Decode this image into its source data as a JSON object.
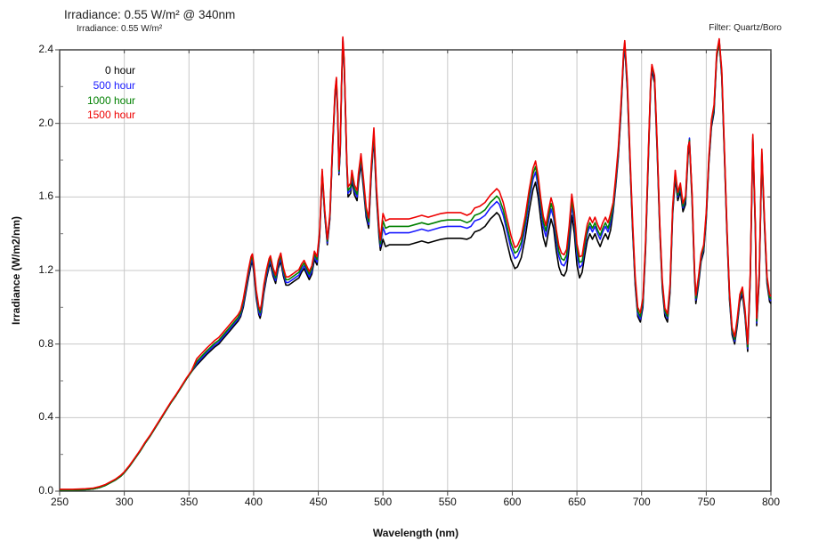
{
  "header": {
    "title": "Irradiance: 0.55 W/m² @ 340nm",
    "subtitle": "Irradiance: 0.55 W/m²",
    "filter_label": "Filter: Quartz/Boro"
  },
  "legend": {
    "position": "top-left",
    "items": [
      {
        "label": "0 hour",
        "color": "#000000"
      },
      {
        "label": "500 hour",
        "color": "#1a1aff"
      },
      {
        "label": "1000 hour",
        "color": "#008000"
      },
      {
        "label": "1500 hour",
        "color": "#ee0000"
      }
    ]
  },
  "axes": {
    "x_label": "Wavelength (nm)",
    "y_label": "Irradiance (W/m2/nm)",
    "x_tick_labels": [
      "250",
      "300",
      "350",
      "400",
      "450",
      "500",
      "550",
      "600",
      "650",
      "700",
      "750",
      "800"
    ],
    "y_tick_labels": [
      "0.0",
      "0.4",
      "0.8",
      "1.2",
      "1.6",
      "2.0",
      "2.4"
    ]
  },
  "colors": {
    "grid": "#c8c8c8",
    "border": "#333333",
    "tick": "#444444",
    "background": "#ffffff"
  },
  "chart_data": {
    "type": "line",
    "title": "Irradiance: 0.55 W/m² @ 340nm",
    "xlabel": "Wavelength (nm)",
    "ylabel": "Irradiance (W/m2/nm)",
    "xlim": [
      250,
      800
    ],
    "ylim": [
      0,
      2.4
    ],
    "grid": true,
    "legend_position": "top-left",
    "x_ticks": [
      250,
      300,
      350,
      400,
      450,
      500,
      550,
      600,
      650,
      700,
      750,
      800
    ],
    "y_ticks": [
      0,
      0.4,
      0.8,
      1.2,
      1.6,
      2.0,
      2.4
    ],
    "x": [
      250,
      260,
      270,
      276,
      281,
      285,
      289,
      293,
      297,
      300,
      304,
      308,
      312,
      316,
      320,
      324,
      328,
      332,
      336,
      340,
      344,
      348,
      352,
      356,
      360,
      364,
      367,
      370,
      373,
      376,
      379,
      382,
      385,
      388,
      390,
      392,
      394,
      396,
      398,
      399,
      400,
      402,
      404,
      405,
      406,
      408,
      410,
      412,
      413,
      415,
      417,
      419,
      421,
      423,
      425,
      427,
      429,
      431,
      433,
      435,
      437,
      439,
      441,
      443,
      445,
      447,
      449,
      451,
      453,
      455,
      457,
      459,
      461,
      463,
      464,
      465,
      466,
      467,
      468,
      469,
      470,
      471,
      472,
      473,
      475,
      476,
      478,
      480,
      481,
      483,
      485,
      487,
      489,
      491,
      493,
      495,
      497,
      498,
      500,
      502,
      505,
      510,
      515,
      520,
      525,
      530,
      535,
      540,
      545,
      550,
      555,
      560,
      565,
      568,
      571,
      575,
      579,
      583,
      586,
      588,
      590,
      593,
      596,
      599,
      602,
      604,
      607,
      610,
      613,
      616,
      618,
      620,
      622,
      624,
      626,
      628,
      630,
      632,
      634,
      636,
      638,
      640,
      642,
      644,
      646,
      648,
      650,
      652,
      654,
      656,
      658,
      660,
      662,
      664,
      666,
      668,
      670,
      672,
      674,
      676,
      678,
      680,
      682,
      684,
      686,
      687,
      689,
      691,
      693,
      695,
      697,
      699,
      701,
      703,
      705,
      707,
      708,
      710,
      712,
      714,
      716,
      718,
      720,
      722,
      724,
      726,
      728,
      730,
      732,
      734,
      736,
      737,
      739,
      741,
      742,
      744,
      746,
      748,
      750,
      752,
      754,
      756,
      758,
      760,
      762,
      764,
      766,
      768,
      770,
      772,
      774,
      776,
      778,
      780,
      782,
      784,
      786,
      788,
      789,
      791,
      793,
      795,
      797,
      799,
      800
    ],
    "series": [
      {
        "name": "0 hour",
        "color": "#000000",
        "values": [
          0.005,
          0.005,
          0.008,
          0.012,
          0.02,
          0.03,
          0.045,
          0.06,
          0.08,
          0.1,
          0.135,
          0.175,
          0.215,
          0.26,
          0.3,
          0.345,
          0.39,
          0.435,
          0.48,
          0.52,
          0.565,
          0.61,
          0.65,
          0.685,
          0.715,
          0.745,
          0.765,
          0.785,
          0.8,
          0.825,
          0.85,
          0.875,
          0.9,
          0.925,
          0.95,
          1.0,
          1.08,
          1.16,
          1.23,
          1.245,
          1.2,
          1.05,
          0.96,
          0.94,
          0.97,
          1.08,
          1.16,
          1.22,
          1.235,
          1.17,
          1.13,
          1.21,
          1.25,
          1.17,
          1.12,
          1.12,
          1.13,
          1.14,
          1.15,
          1.16,
          1.19,
          1.21,
          1.18,
          1.15,
          1.18,
          1.26,
          1.23,
          1.38,
          1.72,
          1.5,
          1.34,
          1.48,
          1.85,
          2.15,
          2.22,
          2.05,
          1.72,
          1.85,
          2.2,
          2.43,
          2.32,
          2.05,
          1.78,
          1.6,
          1.62,
          1.69,
          1.61,
          1.58,
          1.67,
          1.78,
          1.64,
          1.49,
          1.43,
          1.72,
          1.92,
          1.6,
          1.38,
          1.31,
          1.37,
          1.33,
          1.34,
          1.34,
          1.34,
          1.34,
          1.35,
          1.36,
          1.35,
          1.36,
          1.37,
          1.375,
          1.375,
          1.375,
          1.37,
          1.38,
          1.41,
          1.42,
          1.44,
          1.48,
          1.5,
          1.515,
          1.5,
          1.44,
          1.35,
          1.26,
          1.21,
          1.22,
          1.27,
          1.38,
          1.52,
          1.64,
          1.68,
          1.6,
          1.48,
          1.38,
          1.33,
          1.41,
          1.48,
          1.43,
          1.31,
          1.22,
          1.18,
          1.17,
          1.2,
          1.33,
          1.5,
          1.4,
          1.23,
          1.16,
          1.19,
          1.28,
          1.36,
          1.4,
          1.37,
          1.4,
          1.36,
          1.33,
          1.37,
          1.4,
          1.37,
          1.42,
          1.52,
          1.66,
          1.82,
          2.05,
          2.35,
          2.42,
          2.18,
          1.78,
          1.42,
          1.12,
          0.95,
          0.92,
          1.0,
          1.3,
          1.75,
          2.2,
          2.29,
          2.22,
          1.85,
          1.42,
          1.1,
          0.95,
          0.92,
          1.08,
          1.5,
          1.7,
          1.58,
          1.63,
          1.52,
          1.56,
          1.83,
          1.89,
          1.58,
          1.15,
          1.02,
          1.12,
          1.25,
          1.3,
          1.48,
          1.78,
          1.98,
          2.06,
          2.35,
          2.45,
          2.25,
          1.83,
          1.4,
          1.04,
          0.85,
          0.8,
          0.9,
          1.03,
          1.07,
          0.95,
          0.76,
          1.15,
          1.9,
          1.4,
          0.9,
          1.15,
          1.82,
          1.45,
          1.13,
          1.03,
          1.02
        ]
      },
      {
        "name": "500 hour",
        "color": "#1a1aff",
        "values": [
          0.005,
          0.005,
          0.008,
          0.012,
          0.02,
          0.03,
          0.045,
          0.06,
          0.08,
          0.1,
          0.135,
          0.175,
          0.215,
          0.26,
          0.3,
          0.345,
          0.39,
          0.435,
          0.48,
          0.52,
          0.565,
          0.61,
          0.65,
          0.695,
          0.725,
          0.755,
          0.775,
          0.795,
          0.81,
          0.835,
          0.86,
          0.885,
          0.91,
          0.935,
          0.96,
          1.015,
          1.095,
          1.175,
          1.245,
          1.26,
          1.215,
          1.065,
          0.975,
          0.955,
          0.985,
          1.095,
          1.175,
          1.235,
          1.25,
          1.185,
          1.145,
          1.225,
          1.265,
          1.185,
          1.135,
          1.135,
          1.145,
          1.155,
          1.165,
          1.175,
          1.205,
          1.225,
          1.195,
          1.165,
          1.195,
          1.275,
          1.245,
          1.39,
          1.73,
          1.51,
          1.35,
          1.49,
          1.86,
          2.16,
          2.23,
          2.06,
          1.73,
          1.86,
          2.21,
          2.46,
          2.33,
          2.06,
          1.79,
          1.62,
          1.64,
          1.71,
          1.63,
          1.6,
          1.69,
          1.8,
          1.66,
          1.51,
          1.45,
          1.74,
          1.94,
          1.62,
          1.4,
          1.33,
          1.435,
          1.395,
          1.405,
          1.405,
          1.405,
          1.405,
          1.415,
          1.425,
          1.415,
          1.425,
          1.435,
          1.44,
          1.44,
          1.44,
          1.43,
          1.44,
          1.47,
          1.48,
          1.5,
          1.54,
          1.56,
          1.575,
          1.56,
          1.5,
          1.41,
          1.32,
          1.265,
          1.275,
          1.325,
          1.435,
          1.575,
          1.695,
          1.735,
          1.655,
          1.535,
          1.435,
          1.385,
          1.465,
          1.535,
          1.485,
          1.365,
          1.275,
          1.235,
          1.225,
          1.255,
          1.385,
          1.555,
          1.455,
          1.285,
          1.215,
          1.23,
          1.32,
          1.4,
          1.44,
          1.41,
          1.44,
          1.4,
          1.37,
          1.41,
          1.44,
          1.41,
          1.46,
          1.535,
          1.675,
          1.835,
          2.065,
          2.36,
          2.43,
          2.195,
          1.795,
          1.435,
          1.135,
          0.965,
          0.935,
          1.015,
          1.32,
          1.77,
          2.21,
          2.3,
          2.24,
          1.87,
          1.44,
          1.12,
          0.97,
          0.94,
          1.1,
          1.52,
          1.72,
          1.6,
          1.65,
          1.54,
          1.58,
          1.85,
          1.92,
          1.6,
          1.17,
          1.04,
          1.14,
          1.265,
          1.315,
          1.495,
          1.795,
          1.995,
          2.075,
          2.36,
          2.455,
          2.265,
          1.845,
          1.415,
          1.055,
          0.865,
          0.815,
          0.915,
          1.045,
          1.085,
          0.965,
          0.775,
          1.165,
          1.915,
          1.415,
          0.915,
          1.165,
          1.835,
          1.465,
          1.145,
          1.045,
          1.035
        ]
      },
      {
        "name": "1000 hour",
        "color": "#008000",
        "values": [
          0.005,
          0.005,
          0.008,
          0.012,
          0.02,
          0.03,
          0.045,
          0.06,
          0.08,
          0.1,
          0.135,
          0.175,
          0.215,
          0.26,
          0.3,
          0.345,
          0.39,
          0.435,
          0.48,
          0.52,
          0.565,
          0.61,
          0.65,
          0.705,
          0.735,
          0.765,
          0.785,
          0.805,
          0.82,
          0.845,
          0.87,
          0.895,
          0.92,
          0.945,
          0.97,
          1.03,
          1.11,
          1.19,
          1.26,
          1.275,
          1.23,
          1.08,
          0.99,
          0.97,
          1.0,
          1.11,
          1.19,
          1.25,
          1.265,
          1.2,
          1.16,
          1.24,
          1.28,
          1.2,
          1.15,
          1.15,
          1.16,
          1.17,
          1.18,
          1.19,
          1.22,
          1.24,
          1.21,
          1.18,
          1.21,
          1.29,
          1.26,
          1.4,
          1.74,
          1.52,
          1.36,
          1.5,
          1.87,
          2.17,
          2.24,
          2.07,
          1.74,
          1.87,
          2.22,
          2.445,
          2.34,
          2.07,
          1.8,
          1.635,
          1.655,
          1.725,
          1.645,
          1.615,
          1.705,
          1.815,
          1.675,
          1.525,
          1.465,
          1.755,
          1.955,
          1.635,
          1.415,
          1.345,
          1.47,
          1.43,
          1.44,
          1.44,
          1.44,
          1.44,
          1.45,
          1.46,
          1.45,
          1.46,
          1.47,
          1.475,
          1.475,
          1.475,
          1.46,
          1.47,
          1.5,
          1.51,
          1.53,
          1.57,
          1.59,
          1.605,
          1.59,
          1.53,
          1.44,
          1.35,
          1.295,
          1.305,
          1.355,
          1.465,
          1.605,
          1.725,
          1.765,
          1.685,
          1.565,
          1.465,
          1.415,
          1.495,
          1.565,
          1.515,
          1.395,
          1.305,
          1.265,
          1.255,
          1.285,
          1.415,
          1.585,
          1.485,
          1.315,
          1.245,
          1.25,
          1.34,
          1.42,
          1.46,
          1.43,
          1.46,
          1.42,
          1.39,
          1.43,
          1.46,
          1.43,
          1.48,
          1.55,
          1.69,
          1.85,
          2.08,
          2.37,
          2.44,
          2.21,
          1.81,
          1.45,
          1.15,
          0.98,
          0.95,
          1.03,
          1.33,
          1.78,
          2.22,
          2.31,
          2.25,
          1.88,
          1.45,
          1.13,
          0.98,
          0.95,
          1.11,
          1.53,
          1.73,
          1.61,
          1.66,
          1.55,
          1.59,
          1.86,
          1.91,
          1.61,
          1.18,
          1.05,
          1.15,
          1.275,
          1.325,
          1.505,
          1.805,
          2.005,
          2.085,
          2.365,
          2.45,
          2.275,
          1.855,
          1.425,
          1.065,
          0.875,
          0.825,
          0.925,
          1.055,
          1.095,
          0.975,
          0.785,
          1.175,
          1.925,
          1.425,
          0.925,
          1.175,
          1.845,
          1.475,
          1.155,
          1.055,
          1.045
        ]
      },
      {
        "name": "1500 hour",
        "color": "#ee0000",
        "values": [
          0.01,
          0.01,
          0.013,
          0.017,
          0.025,
          0.035,
          0.05,
          0.065,
          0.085,
          0.105,
          0.14,
          0.18,
          0.22,
          0.265,
          0.305,
          0.35,
          0.395,
          0.44,
          0.485,
          0.525,
          0.57,
          0.615,
          0.655,
          0.72,
          0.75,
          0.78,
          0.8,
          0.82,
          0.835,
          0.86,
          0.885,
          0.91,
          0.935,
          0.96,
          0.985,
          1.045,
          1.125,
          1.205,
          1.275,
          1.29,
          1.245,
          1.095,
          1.005,
          0.985,
          1.015,
          1.125,
          1.205,
          1.265,
          1.28,
          1.215,
          1.175,
          1.255,
          1.295,
          1.215,
          1.165,
          1.165,
          1.175,
          1.185,
          1.195,
          1.205,
          1.235,
          1.255,
          1.225,
          1.195,
          1.225,
          1.305,
          1.275,
          1.41,
          1.75,
          1.53,
          1.37,
          1.51,
          1.88,
          2.18,
          2.25,
          2.08,
          1.75,
          1.88,
          2.23,
          2.47,
          2.35,
          2.08,
          1.81,
          1.655,
          1.675,
          1.745,
          1.665,
          1.635,
          1.725,
          1.835,
          1.695,
          1.545,
          1.485,
          1.775,
          1.975,
          1.655,
          1.435,
          1.365,
          1.51,
          1.47,
          1.48,
          1.48,
          1.48,
          1.48,
          1.49,
          1.5,
          1.49,
          1.5,
          1.51,
          1.515,
          1.515,
          1.515,
          1.5,
          1.51,
          1.54,
          1.55,
          1.57,
          1.61,
          1.63,
          1.645,
          1.63,
          1.57,
          1.48,
          1.39,
          1.325,
          1.335,
          1.385,
          1.495,
          1.635,
          1.755,
          1.795,
          1.715,
          1.595,
          1.495,
          1.445,
          1.525,
          1.595,
          1.545,
          1.425,
          1.335,
          1.295,
          1.285,
          1.315,
          1.445,
          1.615,
          1.515,
          1.345,
          1.275,
          1.28,
          1.37,
          1.45,
          1.49,
          1.46,
          1.49,
          1.45,
          1.42,
          1.46,
          1.49,
          1.46,
          1.51,
          1.57,
          1.71,
          1.87,
          2.1,
          2.38,
          2.45,
          2.23,
          1.83,
          1.47,
          1.17,
          1.0,
          0.97,
          1.05,
          1.345,
          1.795,
          2.23,
          2.32,
          2.26,
          1.895,
          1.465,
          1.145,
          0.995,
          0.965,
          1.125,
          1.545,
          1.745,
          1.625,
          1.675,
          1.565,
          1.605,
          1.875,
          1.9,
          1.625,
          1.195,
          1.065,
          1.165,
          1.29,
          1.34,
          1.52,
          1.82,
          2.02,
          2.1,
          2.38,
          2.46,
          2.29,
          1.87,
          1.44,
          1.08,
          0.89,
          0.84,
          0.94,
          1.07,
          1.11,
          0.99,
          0.8,
          1.19,
          1.94,
          1.44,
          0.94,
          1.19,
          1.86,
          1.49,
          1.17,
          1.07,
          1.06
        ]
      }
    ]
  }
}
